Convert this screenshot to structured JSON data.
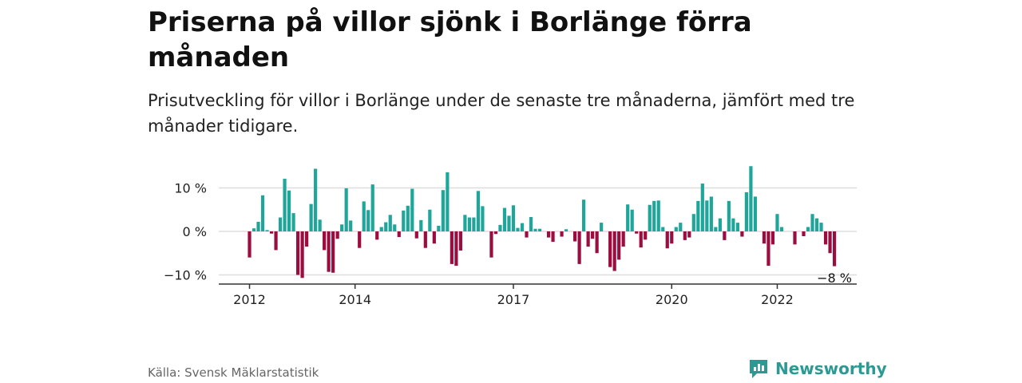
{
  "title": "Priserna på villor sjönk i Borlänge förra månaden",
  "subtitle": "Prisutveckling för villor i Borlänge under de senaste tre månaderna, jämfört med tre månader tidigare.",
  "source": "Källa: Svensk Mäklarstatistik",
  "brand": {
    "name": "Newsworthy",
    "icon": "newsworthy-logo-icon"
  },
  "colors": {
    "positive": "#1fa69a",
    "negative": "#9b0d3f",
    "grid": "#dddddd",
    "axis": "#333333",
    "brand": "#2c9a93"
  },
  "chart_data": {
    "type": "bar",
    "title": "Priserna på villor sjönk i Borlänge förra månaden",
    "xlabel": "",
    "ylabel": "",
    "y_unit": "%",
    "ylim": [
      -12.2,
      14
    ],
    "yticks": [
      {
        "value": 10,
        "label": "10 %"
      },
      {
        "value": 0,
        "label": "0 %"
      },
      {
        "value": -10,
        "label": "−10 %"
      }
    ],
    "xticks": [
      {
        "index": 0,
        "label": "2012"
      },
      {
        "index": 24,
        "label": "2014"
      },
      {
        "index": 60,
        "label": "2017"
      },
      {
        "index": 96,
        "label": "2020"
      },
      {
        "index": 120,
        "label": "2022"
      }
    ],
    "grid": true,
    "start": "2012-01",
    "frequency": "monthly",
    "values": [
      -6.0,
      0.7,
      2.2,
      8.3,
      0.3,
      -0.5,
      -4.3,
      3.2,
      12.1,
      9.4,
      4.2,
      -10.0,
      -10.7,
      -3.5,
      6.3,
      14.4,
      2.7,
      -4.3,
      -9.3,
      -9.5,
      -1.7,
      1.6,
      9.9,
      2.5,
      0,
      -3.8,
      6.9,
      4.9,
      10.8,
      -1.9,
      1.0,
      2.1,
      3.8,
      1.6,
      -1.3,
      4.8,
      5.9,
      9.8,
      -1.6,
      2.6,
      -3.8,
      5.0,
      -2.8,
      1.3,
      9.5,
      13.6,
      -7.5,
      -7.9,
      -4.4,
      3.8,
      3.2,
      3.2,
      9.3,
      5.8,
      0,
      -6.0,
      -0.6,
      1.5,
      5.4,
      3.6,
      6.0,
      0.8,
      1.9,
      -1.4,
      3.3,
      0.6,
      0.6,
      0,
      -1.4,
      -2.4,
      0,
      -1.2,
      0.5,
      0,
      -2.3,
      -7.5,
      7.3,
      -3.5,
      -1.7,
      -5.0,
      2.0,
      0,
      -8.2,
      -9.1,
      -6.5,
      -3.5,
      6.2,
      5.0,
      -0.5,
      -3.7,
      -1.9,
      6.1,
      7.0,
      7.1,
      1.0,
      -3.9,
      -2.8,
      1.0,
      2.0,
      -2.0,
      -1.4,
      4.0,
      7.0,
      11.0,
      7.1,
      8.0,
      1.0,
      3.0,
      -2.0,
      7.0,
      3.0,
      2.0,
      -1.2,
      9.0,
      15.0,
      8.0,
      0,
      -2.8,
      -7.9,
      -3.0,
      4.0,
      1.0,
      0,
      0,
      -3.0,
      0,
      -1.1,
      1.0,
      4.0,
      3.0,
      2.0,
      -3.0,
      -5.0,
      -8.0
    ],
    "last_label": "−8 %"
  }
}
